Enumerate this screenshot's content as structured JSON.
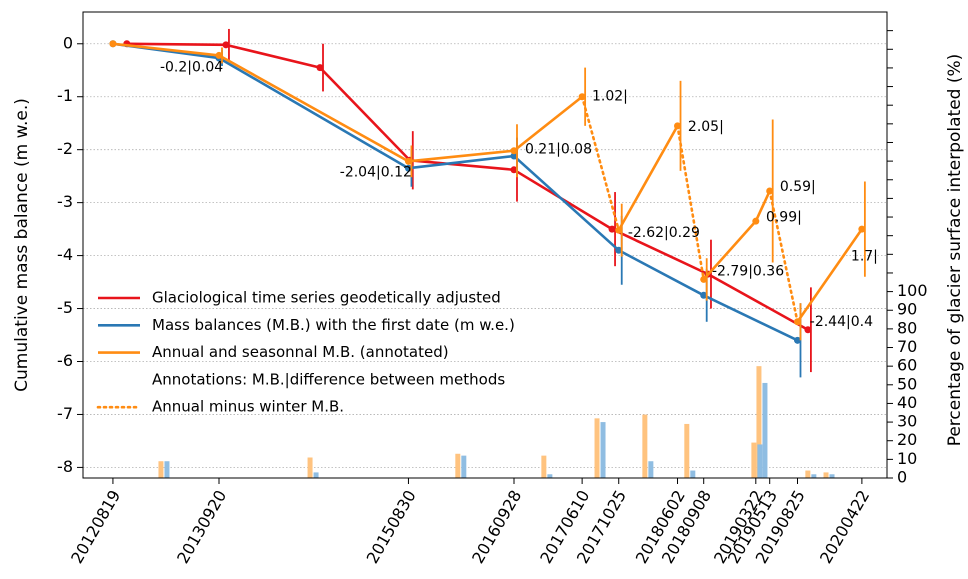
{
  "chart_data": {
    "type": "line",
    "ylabel": "Cumulative mass balance (m w.e.)",
    "y2label": "Percentage of glacier surface interpolated (%)",
    "xlim": [
      "20120429",
      "20200725"
    ],
    "xticks": [
      "20120819",
      "20130920",
      "20150830",
      "20160928",
      "20170610",
      "20171025",
      "20180602",
      "20180908",
      "20190322",
      "20190513",
      "20190825",
      "20200422"
    ],
    "ylim": [
      -8.2,
      0.6
    ],
    "yticks": [
      0,
      -1,
      -2,
      -3,
      -4,
      -5,
      -6,
      -7,
      -8
    ],
    "y2lim": [
      0,
      250
    ],
    "y2ticks": [
      0,
      10,
      20,
      30,
      40,
      50,
      60,
      70,
      80,
      90,
      100
    ],
    "y2minor_ticks": [
      110,
      120,
      130,
      140,
      150,
      160,
      170,
      180,
      190,
      200,
      210,
      220,
      230,
      240
    ],
    "grid": true,
    "legend": {
      "loc": "lower left",
      "note": "Annotations: M.B.|difference between methods"
    },
    "series": [
      {
        "name": "Glaciological time series geodetically adjusted",
        "color": "#e8141b",
        "style": "solid",
        "markers": true,
        "x": [
          "20121010",
          "20131016",
          "20141003",
          "20150904",
          "20160928",
          "20170930",
          "20180924",
          "20191003"
        ],
        "values": [
          0,
          -0.02,
          -0.45,
          -2.2,
          -2.38,
          -3.5,
          -4.35,
          -5.4
        ],
        "errors": [
          0,
          0.3,
          0.45,
          0.55,
          0.6,
          0.7,
          0.65,
          0.8
        ]
      },
      {
        "name": "Mass balances (M.B.) with the first date (m w.e.)",
        "color": "#2a78b4",
        "style": "solid",
        "markers": true,
        "x": [
          "20120819",
          "20130920",
          "20150830",
          "20160928",
          "20171025",
          "20180908",
          "20190825"
        ],
        "values": [
          0,
          -0.27,
          -2.35,
          -2.12,
          -3.9,
          -4.75,
          -5.6
        ],
        "errors": [
          0,
          0.15,
          0.35,
          0.35,
          0.65,
          0.5,
          0.7
        ]
      },
      {
        "name": "Annual and seasonnal M.B. (annotated)",
        "color": "#ff8c12",
        "style": "solid",
        "markers": true,
        "x": [
          "20120819",
          "20130920",
          "20150830",
          "20160928",
          "20170610",
          null,
          "20171025",
          "20180602",
          null,
          "20180908",
          "20190322",
          "20190513",
          null,
          "20190825",
          "20200422"
        ],
        "values": [
          0,
          -0.22,
          -2.22,
          -2.02,
          -1.0,
          null,
          -3.52,
          -1.55,
          null,
          -4.45,
          -3.35,
          -2.78,
          null,
          -5.25,
          -3.5
        ],
        "errors": [
          0,
          0.15,
          0.3,
          0.5,
          0.55,
          null,
          0.5,
          0.85,
          null,
          0.4,
          0,
          1.35,
          null,
          0.35,
          0.9
        ]
      },
      {
        "name": "Annual minus winter M.B.",
        "color": "#ff8c12",
        "style": "dotted",
        "markers": false,
        "x": [
          "20170610",
          "20171025",
          null,
          "20180602",
          "20180908",
          null,
          "20190513",
          "20190825"
        ],
        "values": [
          -1.0,
          -3.52,
          null,
          -1.55,
          -4.45,
          null,
          -2.78,
          -5.25
        ]
      }
    ],
    "bars": {
      "x": [
        "20130226",
        "20140907",
        "20160313",
        "20170129",
        "20170816",
        "20180211",
        "20180718",
        "20190326",
        "20190414",
        "20191014",
        "20191221"
      ],
      "series": [
        {
          "color": "#ffc37f",
          "axis": "y2",
          "values": [
            9,
            11,
            13,
            12,
            32,
            34,
            29,
            19,
            60,
            4,
            3
          ]
        },
        {
          "color": "#8fbde2",
          "axis": "y2",
          "values": [
            9,
            3,
            12,
            2,
            30,
            9,
            4,
            18,
            51,
            2,
            2
          ]
        }
      ]
    },
    "annotations": [
      {
        "text": "-0.2|0.04",
        "x": "20130211",
        "y": -0.45
      },
      {
        "text": "-2.04|0.12",
        "x": "20141216",
        "y": -2.43
      },
      {
        "text": "0.21|0.08",
        "x": "20161108",
        "y": -2.0
      },
      {
        "text": "1.02|",
        "x": "20170717",
        "y": -1.0
      },
      {
        "text": "-2.62|0.29",
        "x": "20171128",
        "y": -3.57
      },
      {
        "text": "2.05|",
        "x": "20180711",
        "y": -1.57
      },
      {
        "text": "-2.79|0.36",
        "x": "20181009",
        "y": -4.3
      },
      {
        "text": "0.59|",
        "x": "20190620",
        "y": -2.7
      },
      {
        "text": "0.99|",
        "x": "20190429",
        "y": -3.28
      },
      {
        "text": "-2.44|0.4",
        "x": "20191010",
        "y": -5.25
      },
      {
        "text": "1.7|",
        "x": "20200312",
        "y": -4.02
      }
    ]
  }
}
